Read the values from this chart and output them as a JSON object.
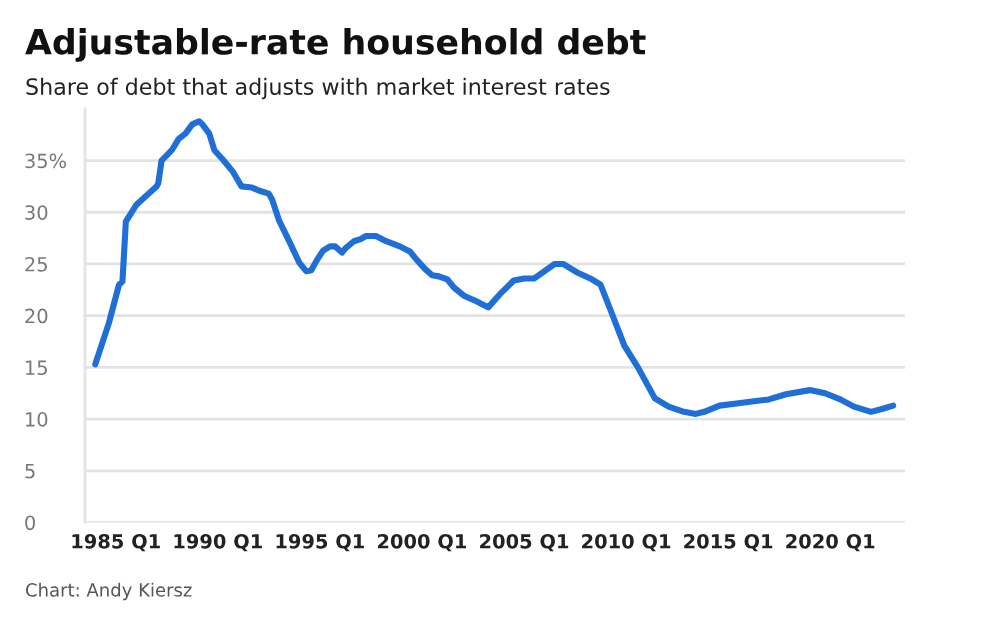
{
  "chart_data": {
    "type": "line",
    "title": "Adjustable-rate household debt",
    "subtitle": "Share of debt that adjusts with market interest rates",
    "annotations": [
      "Chart: Andy Kiersz"
    ],
    "x": [
      "1984-01",
      "1984-09",
      "1985-03",
      "1985-05",
      "1985-07",
      "1986-01",
      "1986-07",
      "1987-01",
      "1987-02",
      "1987-04",
      "1987-10",
      "1988-02",
      "1988-06",
      "1988-10",
      "1989-02",
      "1989-04",
      "1989-08",
      "1989-11",
      "1990-04",
      "1990-10",
      "1991-03",
      "1991-09",
      "1992-01",
      "1992-07",
      "1992-09",
      "1993-01",
      "1993-07",
      "1994-01",
      "1994-05",
      "1994-08",
      "1994-11",
      "1995-03",
      "1995-07",
      "1995-10",
      "1996-02",
      "1996-04",
      "1996-09",
      "1997-01",
      "1997-04",
      "1997-10",
      "1998-04",
      "1998-12",
      "1999-06",
      "1999-10",
      "2000-03",
      "2000-07",
      "2000-11",
      "2001-04",
      "2001-08",
      "2002-02",
      "2002-09",
      "2003-04",
      "2003-11",
      "2004-07",
      "2005-01",
      "2005-07",
      "2006-01",
      "2006-07",
      "2006-12",
      "2007-08",
      "2008-04",
      "2008-10",
      "2009-04",
      "2009-12",
      "2010-08",
      "2011-06",
      "2012-02",
      "2012-11",
      "2013-06",
      "2013-11",
      "2014-08",
      "2015-06",
      "2016-03",
      "2017-01",
      "2017-11",
      "2019-01",
      "2019-10",
      "2020-07",
      "2021-03",
      "2022-01",
      "2022-08",
      "2023-02"
    ],
    "series": [
      {
        "color": "#1f6fd6",
        "values": [
          15.3,
          19.3,
          23.0,
          23.3,
          29.1,
          30.7,
          31.6,
          32.5,
          32.8,
          35.0,
          36.0,
          37.1,
          37.6,
          38.5,
          38.8,
          38.5,
          37.6,
          36.0,
          35.1,
          33.9,
          32.5,
          32.4,
          32.1,
          31.8,
          31.2,
          29.2,
          27.2,
          25.1,
          24.3,
          24.4,
          25.3,
          26.3,
          26.7,
          26.7,
          26.1,
          26.5,
          27.2,
          27.4,
          27.7,
          27.7,
          27.2,
          26.7,
          26.2,
          25.4,
          24.5,
          23.9,
          23.8,
          23.5,
          22.7,
          21.9,
          21.4,
          20.8,
          22.1,
          23.4,
          23.6,
          23.6,
          24.3,
          25.0,
          25.0,
          24.2,
          23.6,
          23.0,
          20.5,
          17.1,
          15.0,
          12.0,
          11.2,
          10.7,
          10.5,
          10.7,
          11.3,
          11.5,
          11.7,
          11.9,
          12.4,
          12.8,
          12.5,
          11.9,
          11.2,
          10.7,
          11.0,
          11.3
        ]
      }
    ],
    "xlim": [
      "1983-07",
      "2023-09"
    ],
    "xticks": [
      {
        "value": "1985-01",
        "label": "1985 Q1"
      },
      {
        "value": "1990-01",
        "label": "1990 Q1"
      },
      {
        "value": "1995-01",
        "label": "1995 Q1"
      },
      {
        "value": "2000-01",
        "label": "2000 Q1"
      },
      {
        "value": "2005-01",
        "label": "2005 Q1"
      },
      {
        "value": "2010-01",
        "label": "2010 Q1"
      },
      {
        "value": "2015-01",
        "label": "2015 Q1"
      },
      {
        "value": "2020-01",
        "label": "2020 Q1"
      }
    ],
    "ylim": [
      0,
      40
    ],
    "yticks": [
      0,
      5,
      10,
      15,
      20,
      25,
      30,
      {
        "value": 35,
        "label": "35%"
      }
    ],
    "grid": "y"
  }
}
